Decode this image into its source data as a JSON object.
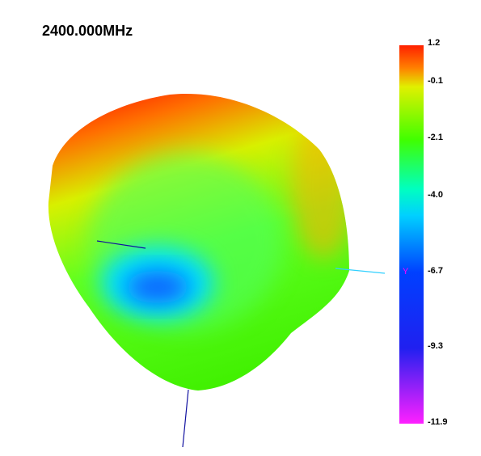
{
  "title": "2400.000MHz",
  "colorbar": {
    "labels": [
      "1.2",
      "-0.1",
      "-2.1",
      "-4.0",
      "-6.7",
      "-9.3",
      "-11.9"
    ]
  },
  "axis_label": "Y"
}
